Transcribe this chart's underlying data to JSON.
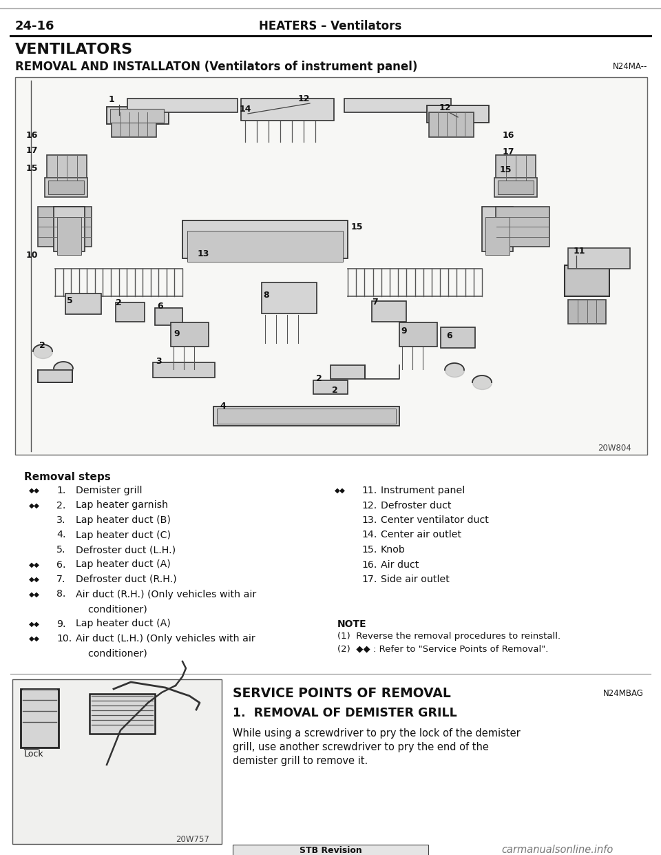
{
  "page_num": "24-16",
  "header_title": "HEATERS – Ventilators",
  "section_title": "VENTILATORS",
  "subsection_title": "REMOVAL AND INSTALLATON (Ventilators of instrument panel)",
  "subsection_code": "N24MA--",
  "diagram_code": "20W804",
  "diagram2_code": "20W757",
  "removal_steps_title": "Removal steps",
  "left_steps": [
    [
      true,
      "1.",
      "Demister grill"
    ],
    [
      true,
      "2.",
      "Lap heater garnish"
    ],
    [
      false,
      "3.",
      "Lap heater duct (B)"
    ],
    [
      false,
      "4.",
      "Lap heater duct (C)"
    ],
    [
      false,
      "5.",
      "Defroster duct (L.H.)"
    ],
    [
      true,
      "6.",
      "Lap heater duct (A)"
    ],
    [
      true,
      "7.",
      "Defroster duct (R.H.)"
    ],
    [
      true,
      "8.",
      "Air duct (R.H.) (Only vehicles with air"
    ],
    [
      false,
      "",
      "    conditioner)"
    ],
    [
      true,
      "9.",
      "Lap heater duct (A)"
    ],
    [
      true,
      "10.",
      "Air duct (L.H.) (Only vehicles with air"
    ],
    [
      false,
      "",
      "    conditioner)"
    ]
  ],
  "right_steps": [
    [
      true,
      "11.",
      "Instrument panel"
    ],
    [
      false,
      "12.",
      "Defroster duct"
    ],
    [
      false,
      "13.",
      "Center ventilator duct"
    ],
    [
      false,
      "14.",
      "Center air outlet"
    ],
    [
      false,
      "15.",
      "Knob"
    ],
    [
      false,
      "16.",
      "Air duct"
    ],
    [
      false,
      "17.",
      "Side air outlet"
    ]
  ],
  "note_title": "NOTE",
  "note_lines": [
    "(1)  Reverse the removal procedures to reinstall.",
    "(2)  ◆◆ : Refer to \"Service Points of Removal\"."
  ],
  "service_title": "SERVICE POINTS OF REMOVAL",
  "service_code": "N24MBAG",
  "service_sub": "1.  REMOVAL OF DEMISTER GRILL",
  "service_text_lines": [
    "While using a screwdriver to pry the lock of the demister",
    "grill, use another screwdriver to pry the end of the",
    "demister grill to remove it."
  ],
  "lock_label": "Lock",
  "footer": "STB Revision",
  "watermark": "carmanualsonline.info",
  "bg_color": "#ffffff",
  "text_color": "#000000",
  "gray_bg": "#f7f7f5",
  "header_line_color": "#222222",
  "box_line_color": "#666666"
}
